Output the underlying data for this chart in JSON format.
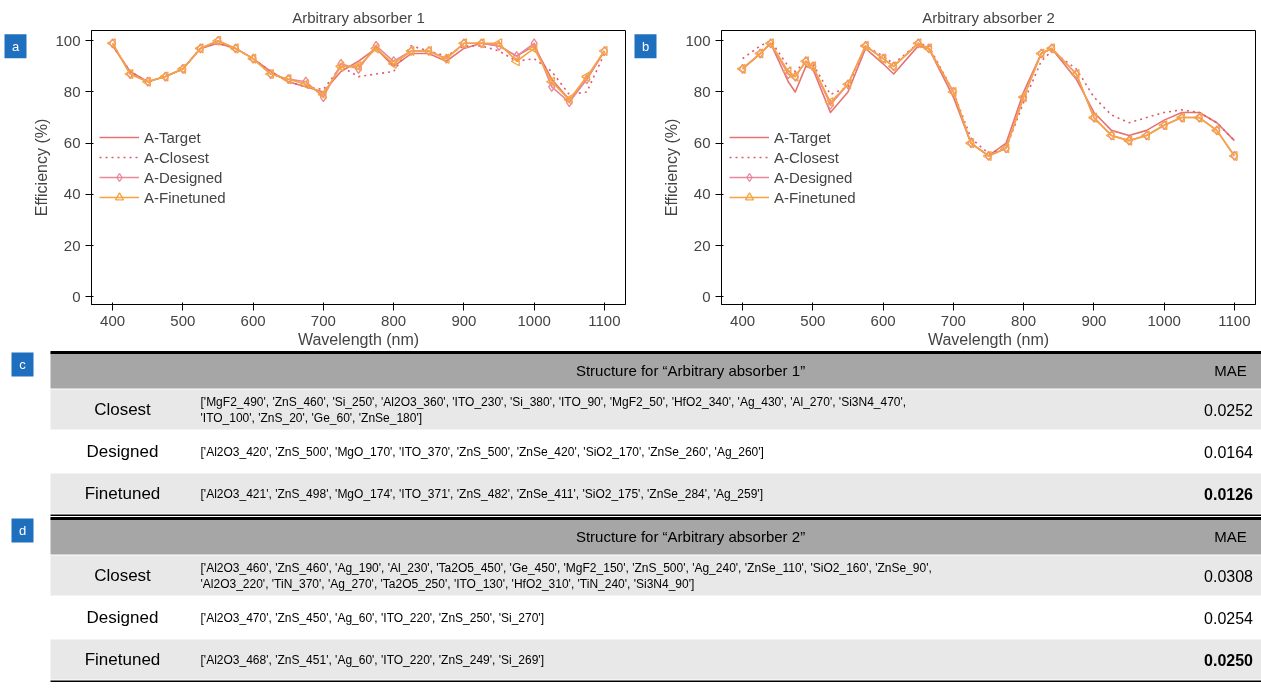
{
  "chart_data": [
    {
      "type": "line",
      "title": "Arbitrary absorber 1",
      "xlabel": "Wavelength (nm)",
      "ylabel": "Efficiency (%)",
      "annotations": [
        "a"
      ],
      "xlim": [
        370,
        1130
      ],
      "ylim": [
        -3,
        104
      ],
      "xticks": [
        400,
        500,
        600,
        700,
        800,
        900,
        1000,
        1100
      ],
      "yticks": [
        0,
        20,
        40,
        60,
        80,
        100
      ],
      "legend": "left",
      "series": [
        {
          "name": "A-Target",
          "color": "#e67373",
          "line_style": "solid",
          "marker": "none",
          "x": [
            400,
            425,
            450,
            475,
            500,
            525,
            550,
            575,
            600,
            625,
            650,
            675,
            700,
            725,
            750,
            775,
            800,
            825,
            850,
            875,
            900,
            925,
            950,
            975,
            1000,
            1025,
            1050,
            1075,
            1100
          ],
          "values": [
            98,
            88,
            84,
            86,
            89,
            97,
            99,
            97,
            93,
            88,
            84,
            82,
            80,
            88,
            92,
            97,
            90,
            95,
            95,
            92,
            97,
            99,
            98,
            94,
            98,
            85,
            77,
            85,
            96
          ]
        },
        {
          "name": "A-Closest",
          "color": "#e05a6a",
          "line_style": "dotted",
          "marker": "none",
          "x": [
            400,
            425,
            450,
            475,
            500,
            525,
            550,
            575,
            600,
            625,
            650,
            675,
            700,
            725,
            750,
            775,
            800,
            825,
            850,
            875,
            900,
            925,
            950,
            975,
            1000,
            1025,
            1050,
            1075,
            1100
          ],
          "values": [
            98,
            88,
            84,
            86,
            89,
            97,
            99,
            97,
            93,
            88,
            84,
            82,
            81,
            90,
            86,
            87,
            88,
            98,
            96,
            94,
            98,
            98,
            96,
            92,
            93,
            88,
            79,
            80,
            95
          ]
        },
        {
          "name": "A-Designed",
          "color": "#e8899a",
          "line_style": "solid",
          "marker": "diamond",
          "x": [
            400,
            425,
            450,
            475,
            500,
            525,
            550,
            575,
            600,
            625,
            650,
            675,
            700,
            725,
            750,
            775,
            800,
            825,
            850,
            875,
            900,
            925,
            950,
            975,
            1000,
            1025,
            1050,
            1075,
            1100
          ],
          "values": [
            99,
            87,
            84,
            86,
            89,
            97,
            100,
            97,
            93,
            87,
            85,
            84,
            78,
            91,
            89,
            98,
            92,
            96,
            96,
            93,
            99,
            99,
            98,
            94,
            99,
            82,
            76,
            85,
            96
          ]
        },
        {
          "name": "A-Finetuned",
          "color": "#f7a440",
          "line_style": "solid",
          "marker": "triangle",
          "x": [
            400,
            425,
            450,
            475,
            500,
            525,
            550,
            575,
            600,
            625,
            650,
            675,
            700,
            725,
            750,
            775,
            800,
            825,
            850,
            875,
            900,
            925,
            950,
            975,
            1000,
            1025,
            1050,
            1075,
            1100
          ],
          "values": [
            99,
            87,
            84,
            86,
            89,
            97,
            100,
            97,
            93,
            87,
            85,
            83,
            79,
            90,
            90,
            97,
            91,
            96,
            96,
            93,
            99,
            99,
            99,
            92,
            97,
            84,
            77,
            86,
            96
          ]
        }
      ]
    },
    {
      "type": "line",
      "title": "Arbitrary absorber 2",
      "xlabel": "Wavelength (nm)",
      "ylabel": "Efficiency (%)",
      "annotations": [
        "b"
      ],
      "xlim": [
        370,
        1130
      ],
      "ylim": [
        -3,
        104
      ],
      "xticks": [
        400,
        500,
        600,
        700,
        800,
        900,
        1000,
        1100
      ],
      "yticks": [
        0,
        20,
        40,
        60,
        80,
        100
      ],
      "legend": "left",
      "series": [
        {
          "name": "A-Target",
          "color": "#e67373",
          "line_style": "solid",
          "marker": "none",
          "x": [
            400,
            425,
            440,
            465,
            475,
            490,
            500,
            525,
            550,
            575,
            600,
            615,
            650,
            665,
            700,
            725,
            750,
            775,
            800,
            825,
            840,
            875,
            900,
            925,
            950,
            975,
            1000,
            1025,
            1050,
            1075,
            1100
          ],
          "values": [
            89,
            95,
            99,
            84,
            80,
            90,
            89,
            72,
            80,
            97,
            91,
            87,
            98,
            97,
            78,
            60,
            55,
            60,
            80,
            95,
            97,
            85,
            72,
            65,
            63,
            65,
            69,
            72,
            72,
            68,
            61
          ]
        },
        {
          "name": "A-Closest",
          "color": "#e05a6a",
          "line_style": "dotted",
          "marker": "none",
          "x": [
            400,
            425,
            440,
            465,
            475,
            490,
            500,
            525,
            550,
            575,
            600,
            615,
            650,
            665,
            700,
            725,
            750,
            775,
            800,
            825,
            840,
            875,
            900,
            925,
            950,
            975,
            1000,
            1025,
            1050,
            1075,
            1100
          ],
          "values": [
            93,
            98,
            100,
            90,
            88,
            92,
            91,
            79,
            82,
            98,
            94,
            91,
            99,
            98,
            80,
            62,
            56,
            58,
            76,
            92,
            96,
            89,
            78,
            71,
            68,
            70,
            72,
            73,
            72,
            68,
            61
          ]
        },
        {
          "name": "A-Designed",
          "color": "#e8899a",
          "line_style": "solid",
          "marker": "diamond",
          "x": [
            400,
            425,
            440,
            465,
            475,
            490,
            500,
            525,
            550,
            575,
            600,
            615,
            650,
            665,
            700,
            725,
            750,
            775,
            800,
            825,
            840,
            875,
            900,
            925,
            950,
            975,
            1000,
            1025,
            1050,
            1075,
            1100
          ],
          "values": [
            89,
            95,
            99,
            87,
            86,
            92,
            90,
            75,
            83,
            98,
            93,
            90,
            99,
            97,
            80,
            60,
            55,
            58,
            78,
            95,
            97,
            87,
            70,
            63,
            61,
            63,
            67,
            70,
            70,
            65,
            55
          ]
        },
        {
          "name": "A-Finetuned",
          "color": "#f7a440",
          "line_style": "solid",
          "marker": "triangle",
          "x": [
            400,
            425,
            440,
            465,
            475,
            490,
            500,
            525,
            550,
            575,
            600,
            615,
            650,
            665,
            700,
            725,
            750,
            775,
            800,
            825,
            840,
            875,
            900,
            925,
            950,
            975,
            1000,
            1025,
            1050,
            1075,
            1100
          ],
          "values": [
            89,
            95,
            99,
            88,
            86,
            92,
            90,
            76,
            83,
            98,
            93,
            90,
            99,
            97,
            80,
            60,
            55,
            58,
            78,
            95,
            97,
            87,
            70,
            63,
            61,
            63,
            67,
            70,
            70,
            65,
            55
          ]
        }
      ]
    },
    {
      "type": "other",
      "title": "Structure for “Arbitrary absorber 1”",
      "annotations": [
        "c",
        "MAE",
        "Closest",
        "['MgF2_490', 'ZnS_460', 'Si_250', 'Al2O3_360', 'ITO_230', 'Si_380', 'ITO_90', 'MgF2_50', 'HfO2_340', 'Ag_430', 'Al_270', 'Si3N4_470', 'ITO_100', 'ZnS_20', 'Ge_60', 'ZnSe_180']",
        "0.0252",
        "Designed",
        "['Al2O3_420', 'ZnS_500', 'MgO_170', 'ITO_370', 'ZnS_500', 'ZnSe_420', 'SiO2_170', 'ZnSe_260', 'Ag_260']",
        "0.0164",
        "Finetuned",
        "['Al2O3_421', 'ZnS_498', 'MgO_174', 'ITO_371', 'ZnS_482', 'ZnSe_411', 'SiO2_175', 'ZnSe_284', 'Ag_259']",
        "0.0126"
      ]
    },
    {
      "type": "other",
      "title": "Structure for “Arbitrary absorber 2”",
      "annotations": [
        "d",
        "MAE",
        "Closest",
        "['Al2O3_460', 'ZnS_460', 'Ag_190', 'Al_230', 'Ta2O5_450', 'Ge_450', 'MgF2_150', 'ZnS_500', 'Ag_240', 'ZnSe_110', 'SiO2_160', 'ZnSe_90', 'Al2O3_220', 'TiN_370', 'Ag_270', 'Ta2O5_250', 'ITO_130', 'HfO2_310', 'TiN_240', 'Si3N4_90']",
        "0.0308",
        "Designed",
        "['Al2O3_470', 'ZnS_450', 'Ag_60', 'ITO_220', 'ZnS_250', 'Si_270']",
        "0.0254",
        "Finetuned",
        "['Al2O3_468', 'ZnS_451', 'Ag_60', 'ITO_220', 'ZnS_249', 'Si_269']",
        "0.0250"
      ]
    }
  ]
}
